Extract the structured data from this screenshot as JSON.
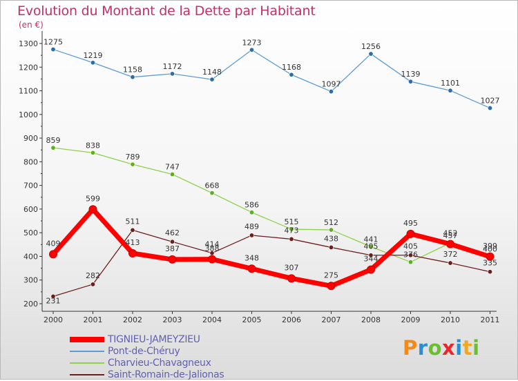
{
  "title": "Evolution du Montant de la Dette par Habitant",
  "unit": "(en €)",
  "brand": {
    "letters": [
      "P",
      "r",
      "o",
      "x",
      "i",
      "t",
      "i"
    ],
    "colors": [
      "#f08a1c",
      "#2a8fd0",
      "#6abf2c",
      "#e8262b",
      "#2a8fd0",
      "#f0a81c",
      "#6abf2c"
    ]
  },
  "chart_data": {
    "type": "line",
    "title": "Evolution du Montant de la Dette par Habitant",
    "ylabel": "(en €)",
    "xlabel": "",
    "categories": [
      "2000",
      "2001",
      "2002",
      "2003",
      "2004",
      "2005",
      "2006",
      "2007",
      "2008",
      "2009",
      "2010",
      "2011"
    ],
    "ylim": [
      200,
      1300
    ],
    "yticks": [
      200,
      300,
      400,
      500,
      600,
      700,
      800,
      900,
      1000,
      1100,
      1200,
      1300
    ],
    "grid": false,
    "legend": "bottom-left",
    "series": [
      {
        "name": "Pont-de-Chéruy",
        "color": "#5b9bd5",
        "values": [
          1275,
          1219,
          1158,
          1172,
          1148,
          1273,
          1168,
          1097,
          1256,
          1139,
          1101,
          1027
        ],
        "labels": [
          "1275",
          "1219",
          "1158",
          "1172",
          "1148",
          "1273",
          "1168",
          "1097",
          "1256",
          "1139",
          "1101",
          "1027"
        ]
      },
      {
        "name": "Charvieu-Chavagneux",
        "color": "#8ed24a",
        "values": [
          859,
          838,
          789,
          747,
          668,
          586,
          515,
          512,
          441,
          376,
          457,
          400
        ],
        "labels": [
          "859",
          "838",
          "789",
          "747",
          "668",
          "586",
          "515",
          "512",
          "441",
          "376",
          "457",
          "400"
        ]
      },
      {
        "name": "Saint-Romain-de-Jalionas",
        "color": "#6b1e1e",
        "values": [
          231,
          282,
          511,
          462,
          414,
          489,
          473,
          438,
          405,
          405,
          372,
          335
        ],
        "labels": [
          "231",
          "282",
          "511",
          "462",
          "414",
          "489",
          "473",
          "438",
          "405",
          "405",
          "372",
          "335"
        ]
      },
      {
        "name": "TIGNIEU-JAMEYZIEU",
        "color": "#ff0000",
        "values": [
          409,
          599,
          413,
          387,
          388,
          348,
          307,
          275,
          344,
          495,
          452,
          399
        ],
        "labels": [
          "409",
          "599",
          "413",
          "387",
          "388",
          "348",
          "307",
          "275",
          "344",
          "495",
          "452",
          "399"
        ]
      }
    ],
    "legend_order": [
      "TIGNIEU-JAMEYZIEU",
      "Pont-de-Chéruy",
      "Charvieu-Chavagneux",
      "Saint-Romain-de-Jalionas"
    ]
  }
}
